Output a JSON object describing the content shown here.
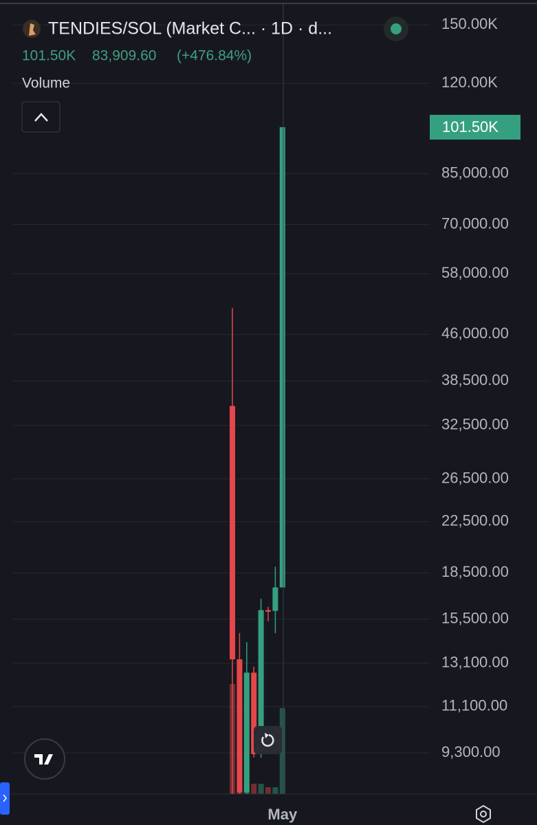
{
  "chart_data": {
    "type": "candlestick",
    "title": "TENDIES/SOL (Market C... · 1D · d...",
    "header_values": [
      "101.50K",
      "83,909.60",
      "(+476.84%)"
    ],
    "indicator": "Volume",
    "x_axis_label_categories": [
      null,
      null,
      null,
      null,
      null,
      null,
      null,
      "May"
    ],
    "open": [
      35000,
      13300,
      8000,
      12640,
      9260,
      16050,
      16000,
      17500
    ],
    "high": [
      50900,
      14700,
      14200,
      12930,
      16760,
      16250,
      18950,
      101500
    ],
    "low": [
      7950,
      7950,
      7950,
      9140,
      9140,
      15380,
      14700,
      17500
    ],
    "close": [
      13300,
      8000,
      12640,
      9260,
      16050,
      15950,
      17500,
      101500
    ],
    "volume": [
      160,
      145,
      15,
      15,
      15,
      10,
      10,
      125
    ],
    "up_color": "#35a07f",
    "down_color": "#e5474b",
    "log_scale": true,
    "grid": true,
    "ylim": [
      7950,
      160700
    ],
    "yticks": [
      {
        "value": 150000,
        "label": "150.00K"
      },
      {
        "value": 120000,
        "label": "120.00K"
      },
      {
        "value": 85000,
        "label": "85,000.00"
      },
      {
        "value": 70000,
        "label": "70,000.00"
      },
      {
        "value": 58000,
        "label": "58,000.00"
      },
      {
        "value": 46000,
        "label": "46,000.00"
      },
      {
        "value": 38500,
        "label": "38,500.00"
      },
      {
        "value": 32500,
        "label": "32,500.00"
      },
      {
        "value": 26500,
        "label": "26,500.00"
      },
      {
        "value": 22500,
        "label": "22,500.00"
      },
      {
        "value": 18500,
        "label": "18,500.00"
      },
      {
        "value": 15500,
        "label": "15,500.00"
      },
      {
        "value": 13100,
        "label": "13,100.00"
      },
      {
        "value": 11100,
        "label": "11,100.00"
      },
      {
        "value": 9300,
        "label": "9,300.00"
      }
    ],
    "last_price": {
      "value": 101500,
      "label": "101.50K"
    }
  }
}
